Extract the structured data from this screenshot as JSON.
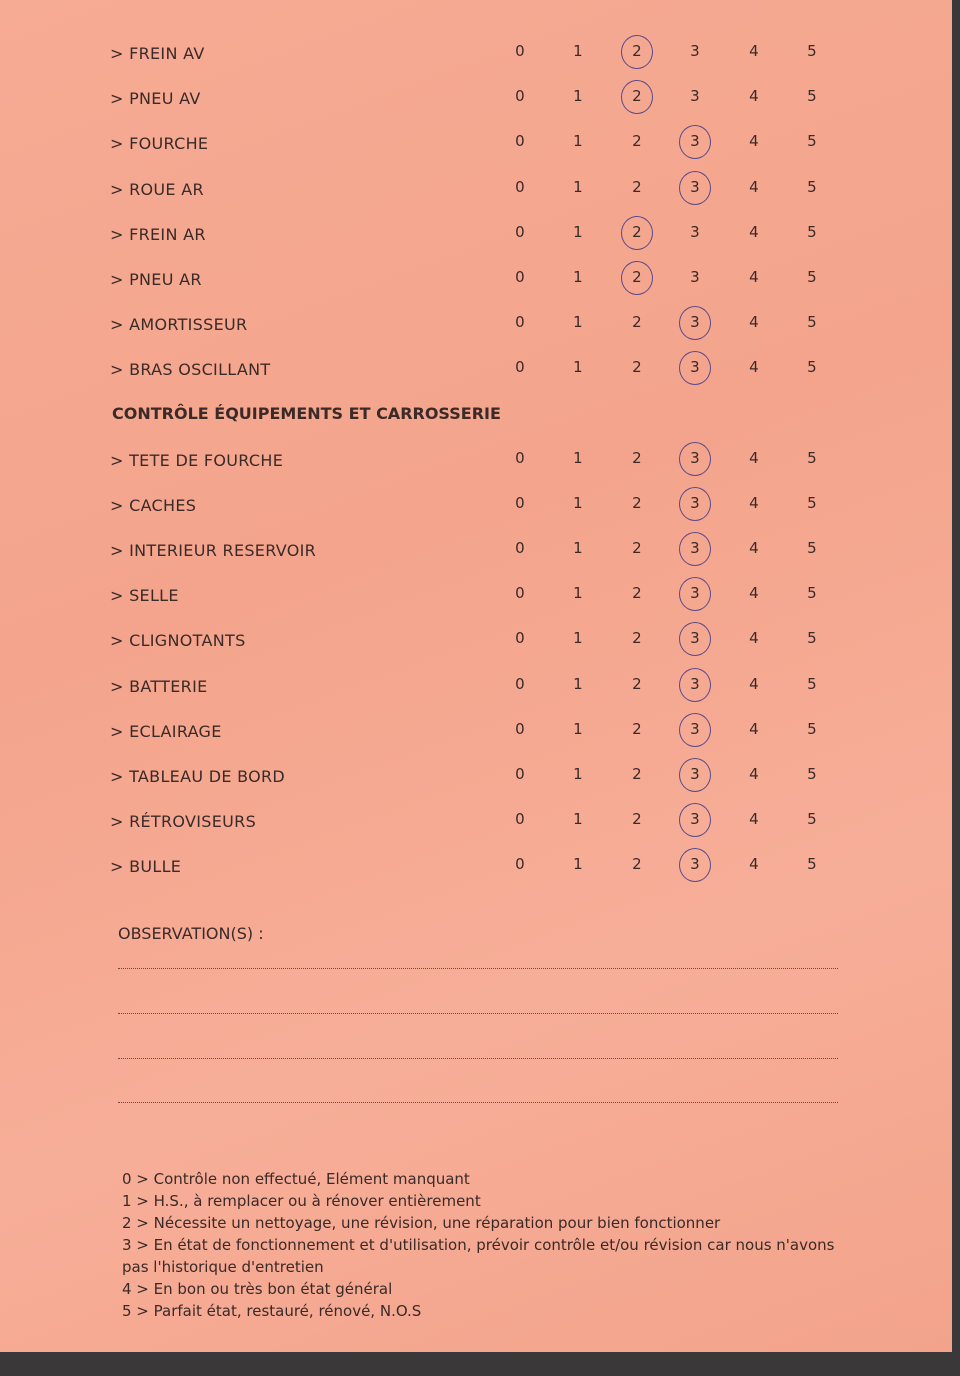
{
  "scale": [
    "0",
    "1",
    "2",
    "3",
    "4",
    "5"
  ],
  "group1": [
    {
      "label": "> FREIN AV",
      "rating": 2
    },
    {
      "label": "> PNEU AV",
      "rating": 2
    },
    {
      "label": "> FOURCHE",
      "rating": 3
    },
    {
      "label": "> ROUE AR",
      "rating": 3
    },
    {
      "label": "> FREIN AR",
      "rating": 2
    },
    {
      "label": "> PNEU AR",
      "rating": 2
    },
    {
      "label": "> AMORTISSEUR",
      "rating": 3
    },
    {
      "label": "> BRAS OSCILLANT",
      "rating": 3
    }
  ],
  "section_title": "CONTRÔLE ÉQUIPEMENTS ET CARROSSERIE",
  "group2": [
    {
      "label": "> TETE DE FOURCHE",
      "rating": 3
    },
    {
      "label": "> CACHES",
      "rating": 3
    },
    {
      "label": "> INTERIEUR RESERVOIR",
      "rating": 3
    },
    {
      "label": "> SELLE",
      "rating": 3
    },
    {
      "label": "> CLIGNOTANTS",
      "rating": 3
    },
    {
      "label": "> BATTERIE",
      "rating": 3
    },
    {
      "label": "> ECLAIRAGE",
      "rating": 3
    },
    {
      "label": "> TABLEAU DE BORD",
      "rating": 3
    },
    {
      "label": "> RÉTROVISEURS",
      "rating": 3
    },
    {
      "label": "> BULLE",
      "rating": 3
    }
  ],
  "observations_label": "OBSERVATION(S) :",
  "legend": [
    "0 > Contrôle non effectué, Elément manquant",
    "1 > H.S., à remplacer ou à rénover entièrement",
    "2 > Nécessite un nettoyage, une révision, une réparation pour bien fonctionner",
    "3 > En état de fonctionnement et d'utilisation, prévoir contrôle et/ou révision car nous n'avons pas l'historique d'entretien",
    "4 > En bon ou très bon état général",
    "5 > Parfait état, restauré, rénové, N.O.S"
  ],
  "colors": {
    "paper": "#f6ab94",
    "ink": "#3a2a28",
    "pen": "#5a4a8a"
  }
}
